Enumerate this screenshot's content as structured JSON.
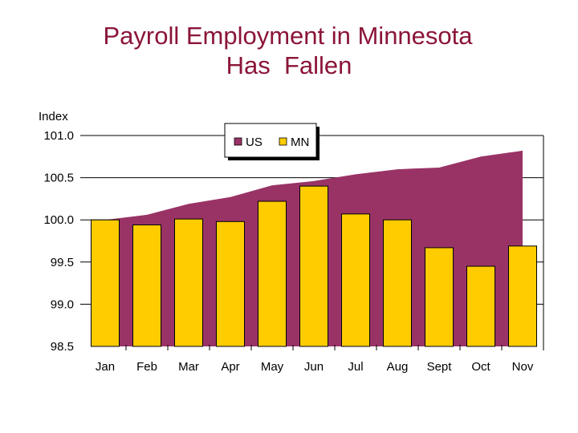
{
  "title_line1": "Payroll Employment in Minnesota",
  "title_line2": "Has  Fallen",
  "colors": {
    "title": "#8B1538",
    "us": "#993366",
    "mn": "#FFCC00"
  },
  "chart_data": {
    "type": "area+bar",
    "ylabel": "Index",
    "ylim": [
      98.5,
      101.0
    ],
    "yticks": [
      "101.0",
      "100.5",
      "100.0",
      "99.5",
      "99.0",
      "98.5"
    ],
    "ytick_values": [
      101.0,
      100.5,
      100.0,
      99.5,
      99.0,
      98.5
    ],
    "categories": [
      "Jan",
      "Feb",
      "Mar",
      "Apr",
      "May",
      "Jun",
      "Jul",
      "Aug",
      "Sept",
      "Oct",
      "Nov"
    ],
    "grid": true,
    "legend_position": "top",
    "series": [
      {
        "name": "US",
        "type": "area",
        "values": [
          100.0,
          100.06,
          100.19,
          100.27,
          100.41,
          100.46,
          100.54,
          100.6,
          100.62,
          100.75,
          100.82
        ]
      },
      {
        "name": "MN",
        "type": "bar",
        "values": [
          100.0,
          99.94,
          100.01,
          99.98,
          100.22,
          100.4,
          100.07,
          100.0,
          99.67,
          99.45,
          99.69
        ]
      }
    ]
  }
}
